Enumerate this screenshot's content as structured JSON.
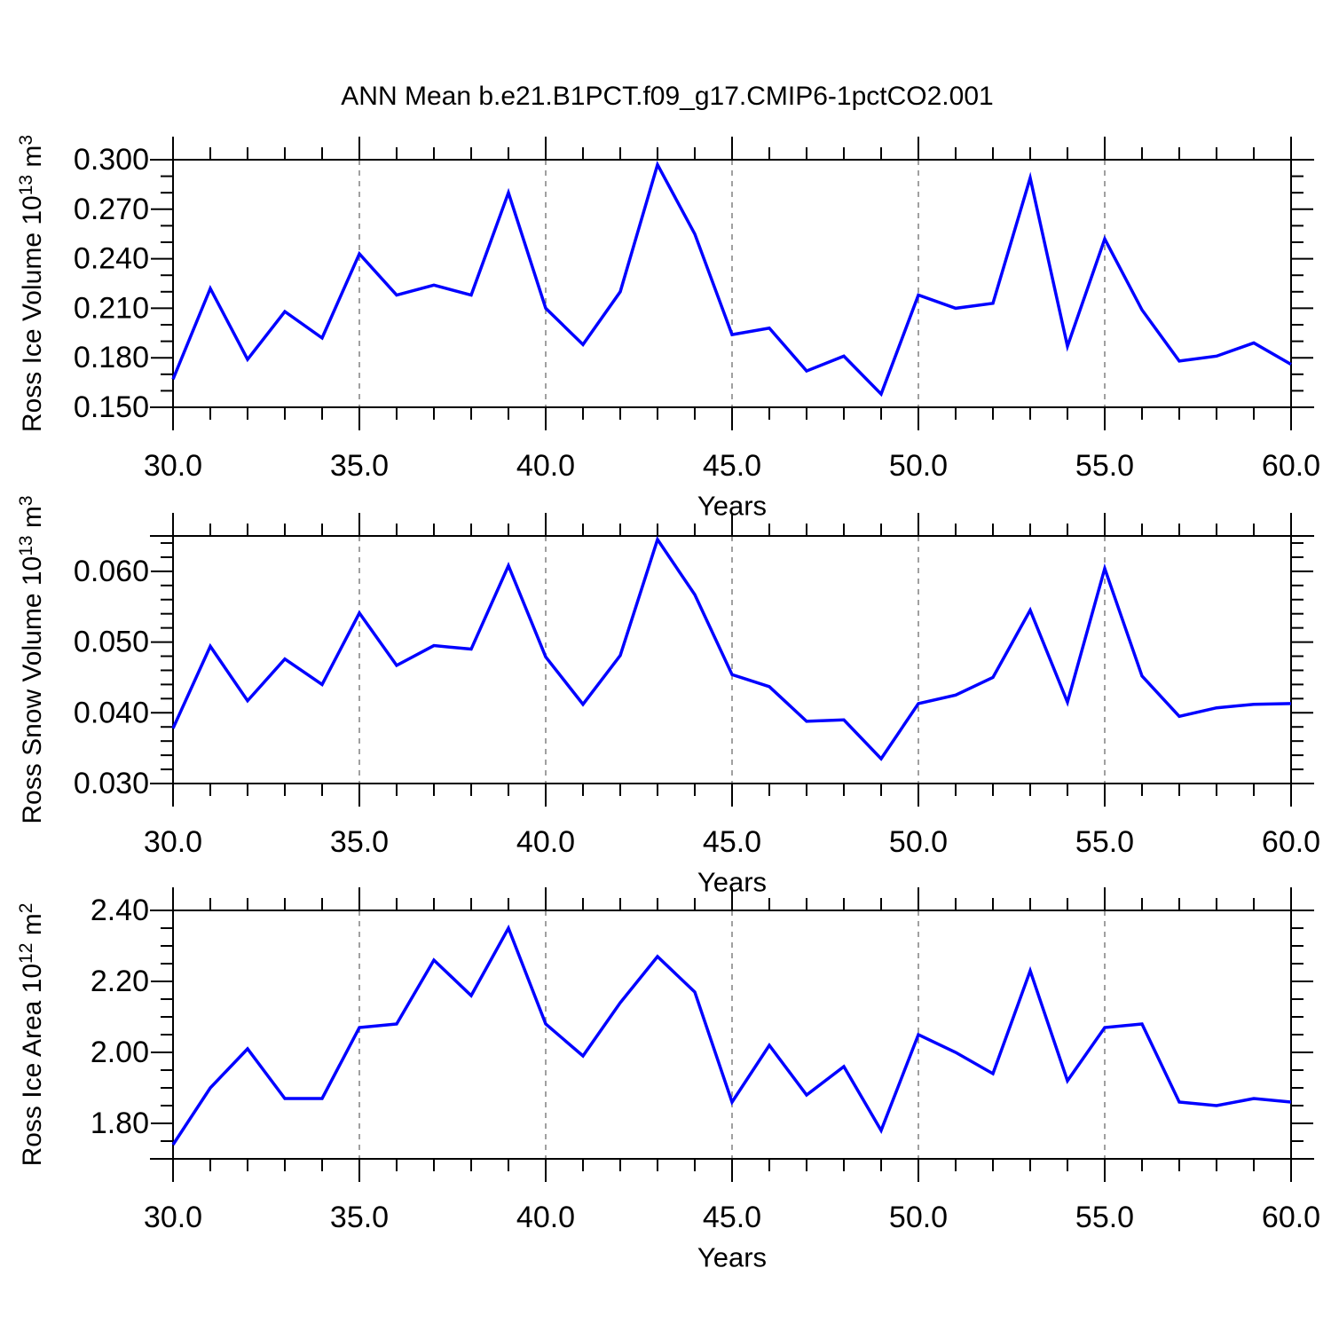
{
  "title": "ANN Mean b.e21.B1PCT.f09_g17.CMIP6-1pctCO2.001",
  "colors": {
    "line": "#0000ff",
    "axis": "#000000",
    "grid": "#808080",
    "background": "#ffffff"
  },
  "chart_data": [
    {
      "type": "line",
      "name": "ross-ice-volume",
      "ylabel": [
        {
          "t": "Ross Ice Volume 10"
        },
        {
          "sup": "13"
        },
        {
          "t": " m"
        },
        {
          "sup": "3"
        }
      ],
      "xlabel": "Years",
      "x": [
        30,
        31,
        32,
        33,
        34,
        35,
        36,
        37,
        38,
        39,
        40,
        41,
        42,
        43,
        44,
        45,
        46,
        47,
        48,
        49,
        50,
        51,
        52,
        53,
        54,
        55,
        56,
        57,
        58,
        59,
        60
      ],
      "values": [
        0.167,
        0.222,
        0.179,
        0.208,
        0.192,
        0.243,
        0.218,
        0.224,
        0.218,
        0.28,
        0.21,
        0.188,
        0.22,
        0.297,
        0.255,
        0.194,
        0.198,
        0.172,
        0.181,
        0.158,
        0.218,
        0.21,
        0.213,
        0.289,
        0.187,
        0.252,
        0.209,
        0.178,
        0.181,
        0.189,
        0.176
      ],
      "xlim": [
        30,
        60
      ],
      "ylim": [
        0.15,
        0.3
      ],
      "xticks": [
        30,
        35,
        40,
        45,
        50,
        55,
        60
      ],
      "xtick_labels": [
        "30.0",
        "35.0",
        "40.0",
        "45.0",
        "50.0",
        "55.0",
        "60.0"
      ],
      "xminor_step": 1,
      "yticks": [
        0.15,
        0.18,
        0.21,
        0.24,
        0.27,
        0.3
      ],
      "ytick_labels": [
        "0.150",
        "0.180",
        "0.210",
        "0.240",
        "0.270",
        "0.300"
      ],
      "yminor_step": 0.01,
      "gridlines_x": [
        35,
        40,
        45,
        50,
        55
      ],
      "grid": "vertical-dashed",
      "legend": "none"
    },
    {
      "type": "line",
      "name": "ross-snow-volume",
      "ylabel": [
        {
          "t": "Ross Snow Volume 10"
        },
        {
          "sup": "13"
        },
        {
          "t": " m"
        },
        {
          "sup": "3"
        }
      ],
      "xlabel": "Years",
      "x": [
        30,
        31,
        32,
        33,
        34,
        35,
        36,
        37,
        38,
        39,
        40,
        41,
        42,
        43,
        44,
        45,
        46,
        47,
        48,
        49,
        50,
        51,
        52,
        53,
        54,
        55,
        56,
        57,
        58,
        59,
        60
      ],
      "values": [
        0.0378,
        0.0494,
        0.0417,
        0.0476,
        0.044,
        0.0541,
        0.0467,
        0.0495,
        0.049,
        0.0608,
        0.0479,
        0.0412,
        0.0481,
        0.0645,
        0.0567,
        0.0454,
        0.0437,
        0.0388,
        0.039,
        0.0335,
        0.0413,
        0.0425,
        0.045,
        0.0545,
        0.0415,
        0.0604,
        0.0452,
        0.0395,
        0.0407,
        0.0412,
        0.0413
      ],
      "xlim": [
        30,
        60
      ],
      "ylim": [
        0.03,
        0.065
      ],
      "xticks": [
        30,
        35,
        40,
        45,
        50,
        55,
        60
      ],
      "xtick_labels": [
        "30.0",
        "35.0",
        "40.0",
        "45.0",
        "50.0",
        "55.0",
        "60.0"
      ],
      "xminor_step": 1,
      "yticks": [
        0.03,
        0.04,
        0.05,
        0.06
      ],
      "ytick_labels": [
        "0.030",
        "0.040",
        "0.050",
        "0.060"
      ],
      "yminor_step": 0.002,
      "gridlines_x": [
        35,
        40,
        45,
        50,
        55
      ],
      "grid": "vertical-dashed",
      "legend": "none"
    },
    {
      "type": "line",
      "name": "ross-ice-area",
      "ylabel": [
        {
          "t": "Ross Ice Area 10"
        },
        {
          "sup": "12"
        },
        {
          "t": " m"
        },
        {
          "sup": "2"
        }
      ],
      "xlabel": "Years",
      "x": [
        30,
        31,
        32,
        33,
        34,
        35,
        36,
        37,
        38,
        39,
        40,
        41,
        42,
        43,
        44,
        45,
        46,
        47,
        48,
        49,
        50,
        51,
        52,
        53,
        54,
        55,
        56,
        57,
        58,
        59,
        60
      ],
      "values": [
        1.74,
        1.9,
        2.01,
        1.87,
        1.87,
        2.07,
        2.08,
        2.26,
        2.16,
        2.35,
        2.08,
        1.99,
        2.14,
        2.27,
        2.17,
        1.86,
        2.02,
        1.88,
        1.96,
        1.78,
        2.05,
        2.0,
        1.94,
        2.23,
        1.92,
        2.07,
        2.08,
        1.86,
        1.85,
        1.87,
        1.86
      ],
      "xlim": [
        30,
        60
      ],
      "ylim": [
        1.7,
        2.4
      ],
      "xticks": [
        30,
        35,
        40,
        45,
        50,
        55,
        60
      ],
      "xtick_labels": [
        "30.0",
        "35.0",
        "40.0",
        "45.0",
        "50.0",
        "55.0",
        "60.0"
      ],
      "xminor_step": 1,
      "yticks": [
        1.8,
        2.0,
        2.2,
        2.4
      ],
      "ytick_labels": [
        "1.80",
        "2.00",
        "2.20",
        "2.40"
      ],
      "yminor_step": 0.05,
      "gridlines_x": [
        35,
        40,
        45,
        50,
        55
      ],
      "grid": "vertical-dashed",
      "legend": "none"
    }
  ]
}
